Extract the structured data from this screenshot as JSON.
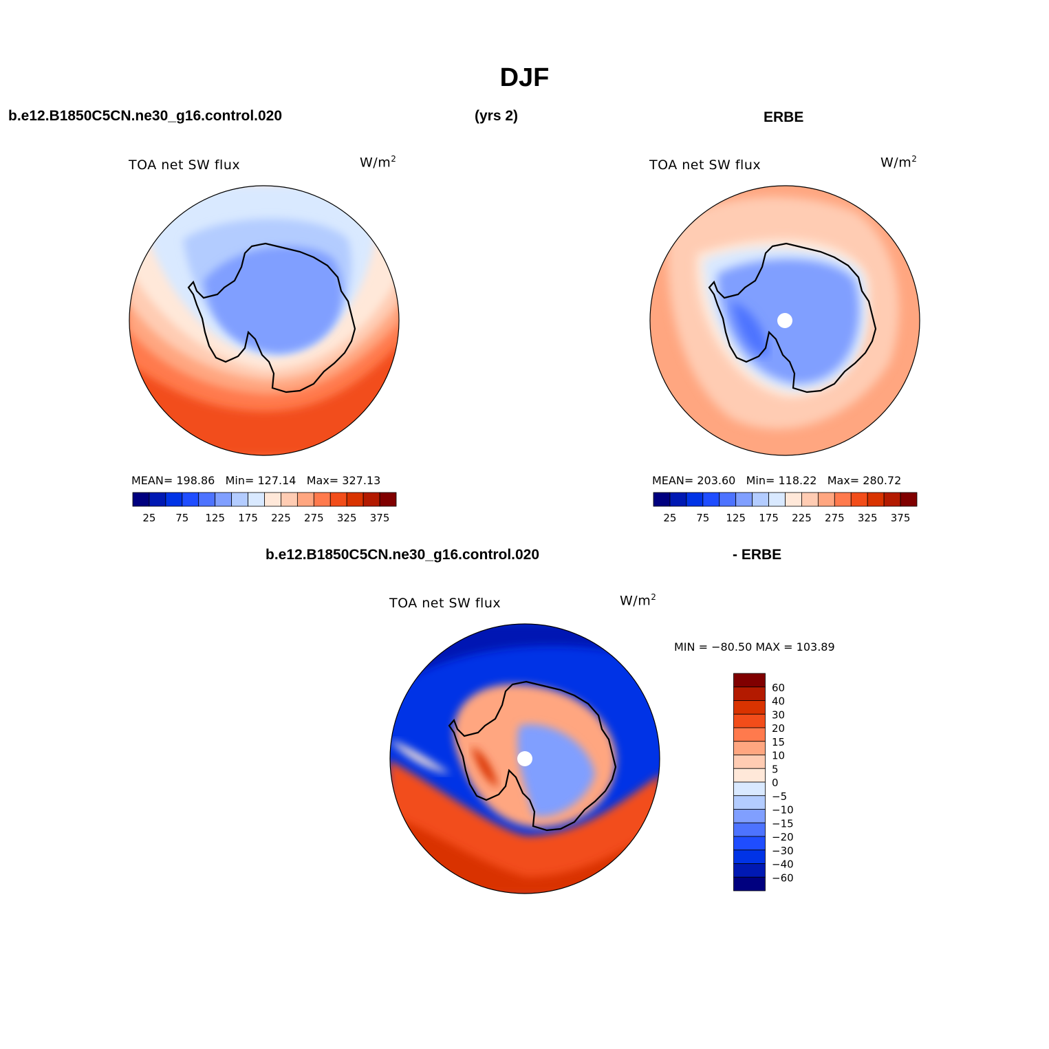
{
  "page": {
    "title": "DJF",
    "case_name": "b.e12.B1850C5CN.ne30_g16.control.020",
    "years": "(yrs 2)",
    "obs_name": "ERBE",
    "diff_case": "b.e12.B1850C5CN.ne30_g16.control.020",
    "diff_obs": "- ERBE"
  },
  "panels": [
    {
      "variable": "TOA net SW flux",
      "units": "W/m",
      "units_sup": "2",
      "stats": {
        "mean_label": "MEAN=",
        "mean": "198.86",
        "min_label": "Min=",
        "min": "127.14",
        "max_label": "Max=",
        "max": "327.13"
      }
    },
    {
      "variable": "TOA net SW flux",
      "units": "W/m",
      "units_sup": "2",
      "stats": {
        "mean_label": "MEAN=",
        "mean": "203.60",
        "min_label": "Min=",
        "min": "118.22",
        "max_label": "Max=",
        "max": "280.72"
      }
    },
    {
      "variable": "TOA net SW flux",
      "units": "W/m",
      "units_sup": "2",
      "minmax": "MIN = −80.50 MAX = 103.89"
    }
  ],
  "colorbar_abs": {
    "colors": [
      "#00007f",
      "#0019b3",
      "#0033e6",
      "#1f4dff",
      "#4d73ff",
      "#809fff",
      "#b3ccff",
      "#d9e9ff",
      "#ffe8d9",
      "#ffccb3",
      "#ffa680",
      "#ff7a4d",
      "#f24d1a",
      "#d93300",
      "#b31a00",
      "#800000"
    ],
    "labels": [
      "25",
      "75",
      "125",
      "175",
      "225",
      "275",
      "325",
      "375"
    ]
  },
  "colorbar_diff": {
    "colors": [
      "#800000",
      "#b31a00",
      "#d93300",
      "#f24d1a",
      "#ff7a4d",
      "#ffa680",
      "#ffccb3",
      "#ffe8d9",
      "#d9e9ff",
      "#b3ccff",
      "#809fff",
      "#4d73ff",
      "#1f4dff",
      "#0033e6",
      "#0019b3",
      "#00007f"
    ],
    "labels": [
      "60",
      "40",
      "30",
      "20",
      "15",
      "10",
      "5",
      "0",
      "−5",
      "−10",
      "−15",
      "−20",
      "−30",
      "−40",
      "−60"
    ]
  }
}
